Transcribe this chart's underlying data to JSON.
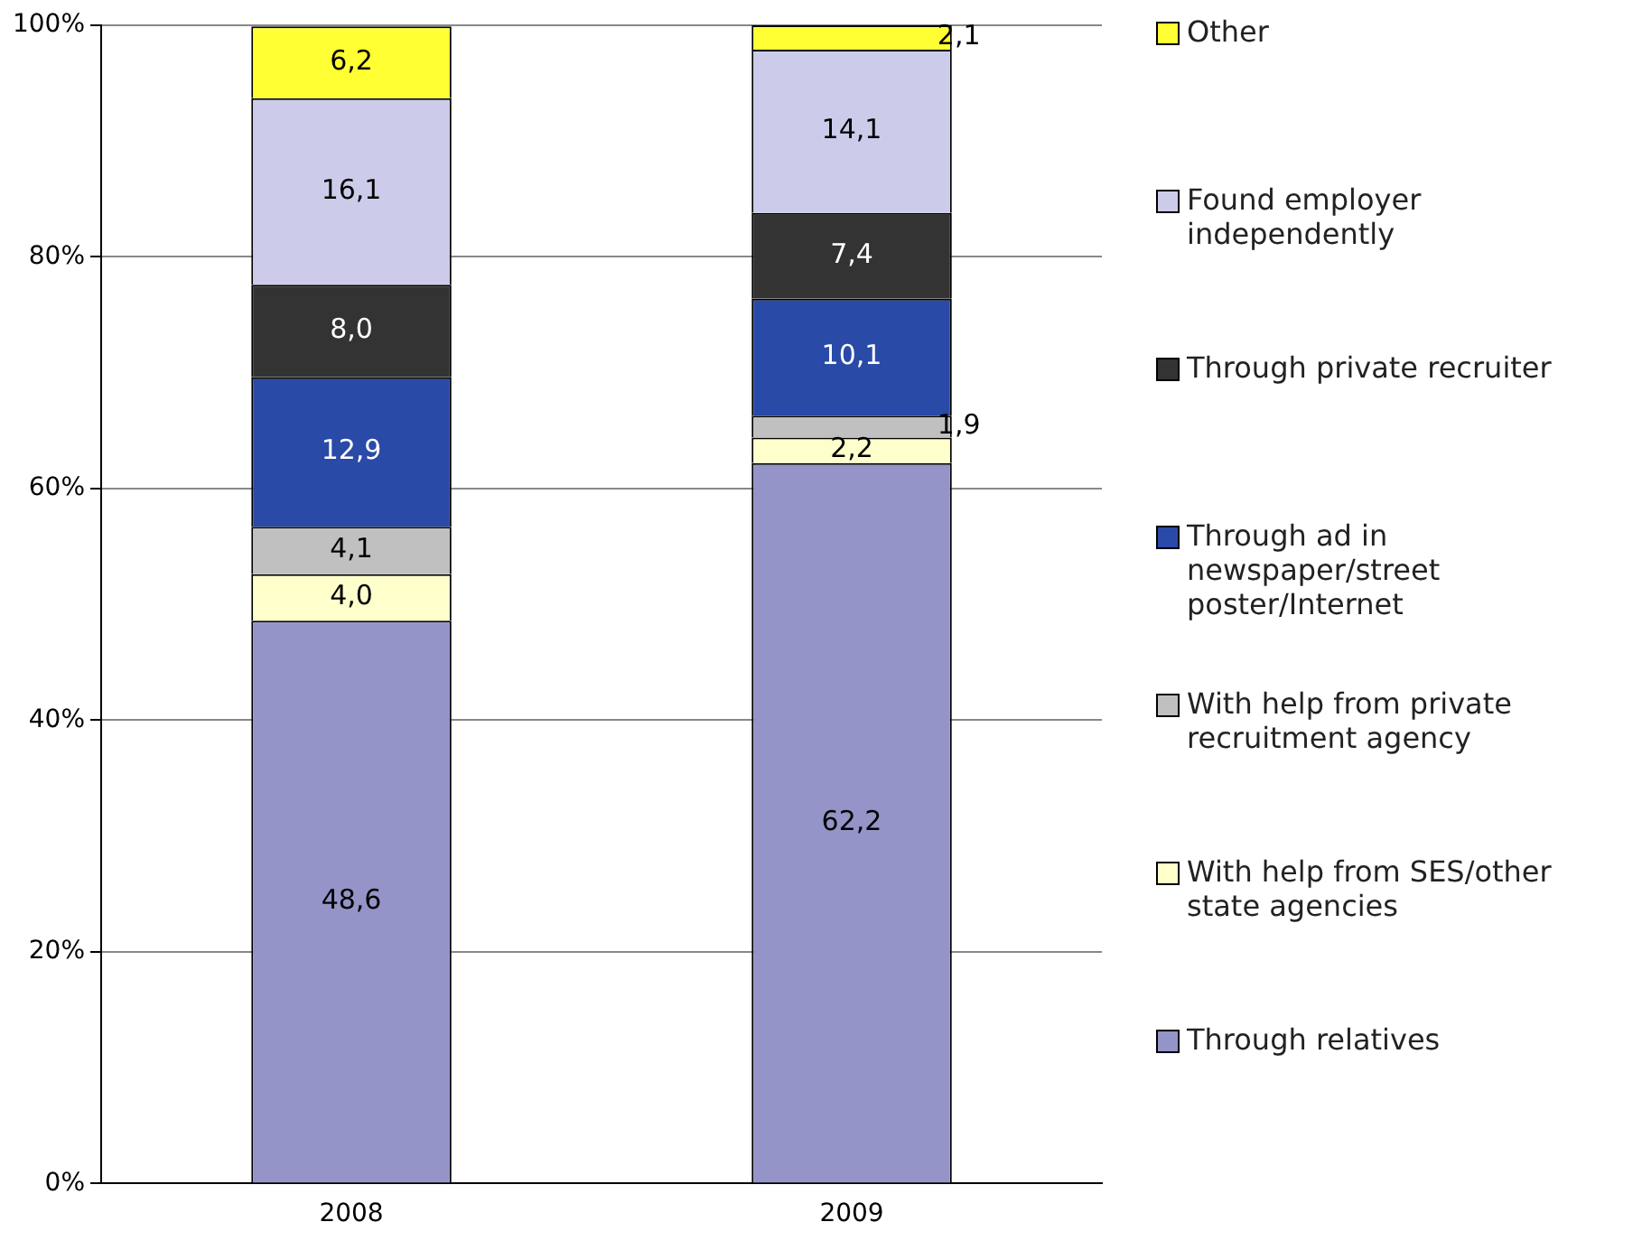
{
  "chart_data": {
    "type": "bar",
    "stacked": true,
    "categories": [
      "2008",
      "2009"
    ],
    "series": [
      {
        "name": "Through relatives",
        "color": "#9494c8",
        "values": [
          48.6,
          62.2
        ],
        "value_labels": [
          "48,6",
          "62,2"
        ]
      },
      {
        "name": "With help from SES/other state agencies",
        "color": "#ffffcc",
        "values": [
          4.0,
          2.2
        ],
        "value_labels": [
          "4,0",
          "2,2"
        ]
      },
      {
        "name": "With help from private recruitment agency",
        "color": "#c0c0c0",
        "values": [
          4.1,
          1.9
        ],
        "value_labels": [
          "4,1",
          "1,9"
        ]
      },
      {
        "name": "Through ad in newspaper/street poster/Internet",
        "color": "#2a4aa8",
        "values": [
          12.9,
          10.1
        ],
        "value_labels": [
          "12,9",
          "10,1"
        ]
      },
      {
        "name": "Through private recruiter",
        "color": "#333333",
        "values": [
          8.0,
          7.4
        ],
        "value_labels": [
          "8,0",
          "7,4"
        ]
      },
      {
        "name": "Found employer independently",
        "color": "#ccccea",
        "values": [
          16.1,
          14.1
        ],
        "value_labels": [
          "16,1",
          "14,1"
        ]
      },
      {
        "name": "Other",
        "color": "#ffff33",
        "values": [
          6.2,
          2.1
        ],
        "value_labels": [
          "6,2",
          "2,1"
        ]
      }
    ],
    "ylim": [
      0,
      100
    ],
    "yticks": [
      {
        "value": 0,
        "label": "0%"
      },
      {
        "value": 20,
        "label": "20%"
      },
      {
        "value": 40,
        "label": "40%"
      },
      {
        "value": 60,
        "label": "60%"
      },
      {
        "value": 80,
        "label": "80%"
      },
      {
        "value": 100,
        "label": "100%"
      }
    ],
    "grid": "y",
    "legend": "right"
  }
}
